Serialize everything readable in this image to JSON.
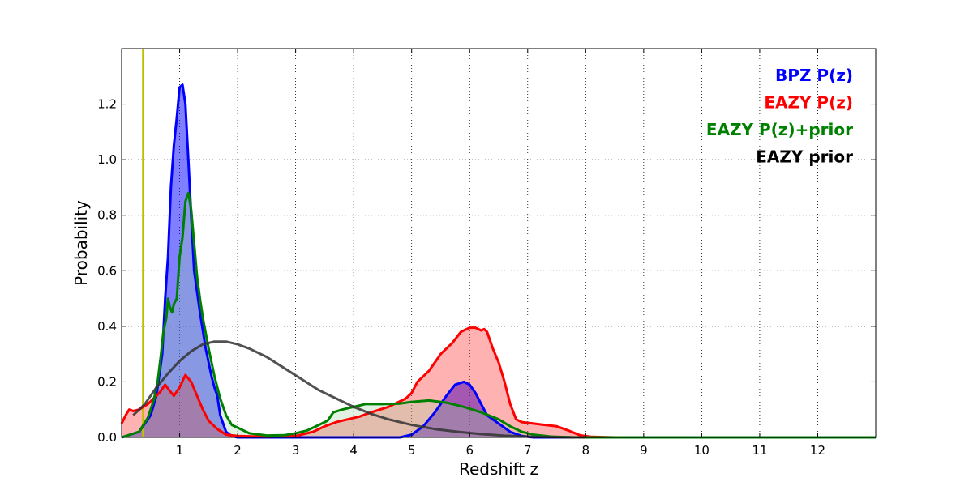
{
  "chart_data": {
    "type": "area",
    "title": "",
    "xlabel": "Redshift z",
    "ylabel": "Probability",
    "xlim": [
      0,
      13
    ],
    "ylim": [
      0,
      1.4
    ],
    "xticks": [
      1,
      2,
      3,
      4,
      5,
      6,
      7,
      8,
      9,
      10,
      11,
      12
    ],
    "yticks": [
      0.0,
      0.2,
      0.4,
      0.6,
      0.8,
      1.0,
      1.2
    ],
    "xtick_labels": [
      "1",
      "2",
      "3",
      "4",
      "5",
      "6",
      "7",
      "8",
      "9",
      "10",
      "11",
      "12"
    ],
    "ytick_labels": [
      "0.0",
      "0.2",
      "0.4",
      "0.6",
      "0.8",
      "1.0",
      "1.2"
    ],
    "grid": true,
    "legend_position": "top-right",
    "vertical_line": {
      "x": 0.37,
      "color": "#bfbf00"
    },
    "series": [
      {
        "name": "BPZ P(z)",
        "color": "#0000ff",
        "fill": "#0000ff",
        "fill_opacity": 0.5,
        "points": [
          [
            0,
            0
          ],
          [
            0.3,
            0.02
          ],
          [
            0.5,
            0.08
          ],
          [
            0.6,
            0.15
          ],
          [
            0.7,
            0.3
          ],
          [
            0.75,
            0.5
          ],
          [
            0.8,
            0.65
          ],
          [
            0.85,
            0.9
          ],
          [
            0.9,
            1.05
          ],
          [
            0.95,
            1.15
          ],
          [
            1.0,
            1.26
          ],
          [
            1.05,
            1.27
          ],
          [
            1.1,
            1.2
          ],
          [
            1.15,
            1.0
          ],
          [
            1.2,
            0.8
          ],
          [
            1.25,
            0.6
          ],
          [
            1.35,
            0.45
          ],
          [
            1.45,
            0.32
          ],
          [
            1.55,
            0.22
          ],
          [
            1.6,
            0.18
          ],
          [
            1.65,
            0.15
          ],
          [
            1.7,
            0.08
          ],
          [
            1.8,
            0.02
          ],
          [
            1.9,
            0.005
          ],
          [
            2.0,
            0
          ],
          [
            4.8,
            0
          ],
          [
            5.0,
            0.01
          ],
          [
            5.2,
            0.04
          ],
          [
            5.4,
            0.09
          ],
          [
            5.6,
            0.15
          ],
          [
            5.75,
            0.19
          ],
          [
            5.9,
            0.2
          ],
          [
            6.0,
            0.19
          ],
          [
            6.1,
            0.16
          ],
          [
            6.2,
            0.12
          ],
          [
            6.3,
            0.08
          ],
          [
            6.5,
            0.05
          ],
          [
            6.7,
            0.02
          ],
          [
            6.9,
            0.005
          ],
          [
            7.1,
            0
          ],
          [
            13,
            0
          ]
        ]
      },
      {
        "name": "EAZY P(z)",
        "color": "#ff0000",
        "fill": "#ff0000",
        "fill_opacity": 0.3,
        "points": [
          [
            0,
            0.05
          ],
          [
            0.07,
            0.08
          ],
          [
            0.13,
            0.1
          ],
          [
            0.2,
            0.095
          ],
          [
            0.3,
            0.1
          ],
          [
            0.45,
            0.12
          ],
          [
            0.55,
            0.14
          ],
          [
            0.65,
            0.16
          ],
          [
            0.75,
            0.19
          ],
          [
            0.82,
            0.17
          ],
          [
            0.9,
            0.15
          ],
          [
            1.0,
            0.18
          ],
          [
            1.1,
            0.225
          ],
          [
            1.2,
            0.2
          ],
          [
            1.3,
            0.15
          ],
          [
            1.4,
            0.1
          ],
          [
            1.5,
            0.06
          ],
          [
            1.65,
            0.03
          ],
          [
            1.8,
            0.01
          ],
          [
            2.0,
            0.005
          ],
          [
            2.5,
            0.002
          ],
          [
            3.0,
            0.005
          ],
          [
            3.3,
            0.02
          ],
          [
            3.5,
            0.04
          ],
          [
            3.7,
            0.055
          ],
          [
            3.9,
            0.065
          ],
          [
            4.1,
            0.075
          ],
          [
            4.3,
            0.09
          ],
          [
            4.6,
            0.11
          ],
          [
            4.9,
            0.14
          ],
          [
            5.0,
            0.16
          ],
          [
            5.1,
            0.2
          ],
          [
            5.3,
            0.24
          ],
          [
            5.5,
            0.3
          ],
          [
            5.7,
            0.34
          ],
          [
            5.85,
            0.38
          ],
          [
            6.0,
            0.395
          ],
          [
            6.1,
            0.395
          ],
          [
            6.2,
            0.385
          ],
          [
            6.25,
            0.39
          ],
          [
            6.3,
            0.38
          ],
          [
            6.4,
            0.32
          ],
          [
            6.5,
            0.27
          ],
          [
            6.6,
            0.2
          ],
          [
            6.7,
            0.12
          ],
          [
            6.8,
            0.065
          ],
          [
            6.9,
            0.055
          ],
          [
            7.1,
            0.05
          ],
          [
            7.3,
            0.045
          ],
          [
            7.5,
            0.04
          ],
          [
            7.7,
            0.025
          ],
          [
            7.9,
            0.008
          ],
          [
            8.1,
            0.002
          ],
          [
            8.5,
            0
          ],
          [
            13,
            0
          ]
        ]
      },
      {
        "name": "EAZY P(z)+prior",
        "color": "#008000",
        "fill": "#9fd39f",
        "fill_opacity": 0.3,
        "points": [
          [
            0,
            0
          ],
          [
            0.3,
            0.02
          ],
          [
            0.45,
            0.07
          ],
          [
            0.55,
            0.13
          ],
          [
            0.62,
            0.2
          ],
          [
            0.68,
            0.3
          ],
          [
            0.72,
            0.38
          ],
          [
            0.77,
            0.43
          ],
          [
            0.8,
            0.5
          ],
          [
            0.83,
            0.47
          ],
          [
            0.87,
            0.45
          ],
          [
            0.9,
            0.48
          ],
          [
            0.95,
            0.5
          ],
          [
            1.0,
            0.65
          ],
          [
            1.05,
            0.72
          ],
          [
            1.1,
            0.85
          ],
          [
            1.15,
            0.88
          ],
          [
            1.2,
            0.82
          ],
          [
            1.25,
            0.7
          ],
          [
            1.3,
            0.58
          ],
          [
            1.35,
            0.5
          ],
          [
            1.4,
            0.43
          ],
          [
            1.5,
            0.32
          ],
          [
            1.6,
            0.22
          ],
          [
            1.7,
            0.14
          ],
          [
            1.8,
            0.08
          ],
          [
            1.9,
            0.045
          ],
          [
            2.0,
            0.035
          ],
          [
            2.2,
            0.015
          ],
          [
            2.5,
            0.007
          ],
          [
            2.8,
            0.008
          ],
          [
            3.0,
            0.015
          ],
          [
            3.2,
            0.025
          ],
          [
            3.4,
            0.045
          ],
          [
            3.55,
            0.06
          ],
          [
            3.65,
            0.09
          ],
          [
            3.8,
            0.1
          ],
          [
            4.0,
            0.11
          ],
          [
            4.2,
            0.12
          ],
          [
            4.5,
            0.12
          ],
          [
            4.8,
            0.122
          ],
          [
            5.0,
            0.128
          ],
          [
            5.3,
            0.133
          ],
          [
            5.6,
            0.125
          ],
          [
            5.9,
            0.11
          ],
          [
            6.2,
            0.09
          ],
          [
            6.5,
            0.065
          ],
          [
            6.7,
            0.04
          ],
          [
            6.9,
            0.02
          ],
          [
            7.1,
            0.01
          ],
          [
            7.4,
            0.003
          ],
          [
            7.8,
            0
          ],
          [
            13,
            0
          ]
        ]
      },
      {
        "name": "EAZY prior",
        "color": "#333333",
        "fill": "none",
        "fill_opacity": 0,
        "points": [
          [
            0.2,
            0.08
          ],
          [
            0.4,
            0.12
          ],
          [
            0.6,
            0.18
          ],
          [
            0.8,
            0.23
          ],
          [
            1.0,
            0.275
          ],
          [
            1.2,
            0.31
          ],
          [
            1.4,
            0.335
          ],
          [
            1.6,
            0.345
          ],
          [
            1.8,
            0.345
          ],
          [
            2.0,
            0.335
          ],
          [
            2.2,
            0.32
          ],
          [
            2.5,
            0.29
          ],
          [
            2.8,
            0.25
          ],
          [
            3.1,
            0.21
          ],
          [
            3.4,
            0.17
          ],
          [
            3.7,
            0.14
          ],
          [
            4.0,
            0.11
          ],
          [
            4.3,
            0.085
          ],
          [
            4.6,
            0.065
          ],
          [
            5.0,
            0.045
          ],
          [
            5.4,
            0.03
          ],
          [
            5.8,
            0.02
          ],
          [
            6.2,
            0.012
          ],
          [
            6.6,
            0.006
          ],
          [
            7.0,
            0.003
          ],
          [
            7.5,
            0.001
          ],
          [
            8.0,
            0
          ]
        ]
      }
    ]
  }
}
